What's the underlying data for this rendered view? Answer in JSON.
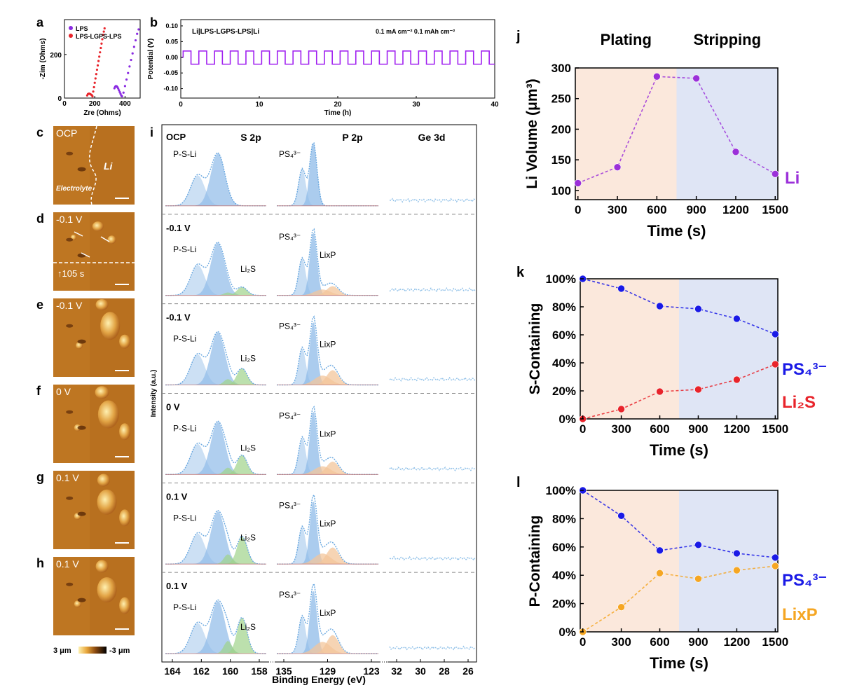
{
  "panel_letters": {
    "a": "a",
    "b": "b",
    "c": "c",
    "d": "d",
    "e": "e",
    "f": "f",
    "g": "g",
    "h": "h",
    "i": "i",
    "j": "j",
    "k": "k",
    "l": "l"
  },
  "afm": {
    "panels": [
      {
        "letter": "c",
        "label": "OCP",
        "extra": "Li",
        "extra2": "Electrolyte"
      },
      {
        "letter": "d",
        "label": "-0.1 V",
        "extra": "105 s"
      },
      {
        "letter": "e",
        "label": "-0.1 V"
      },
      {
        "letter": "f",
        "label": "0 V"
      },
      {
        "letter": "g",
        "label": "0.1 V"
      },
      {
        "letter": "h",
        "label": "0.1 V"
      }
    ],
    "colorbar_max": "3 μm",
    "colorbar_min": "-3 μm"
  },
  "xps": {
    "ylabel": "Intensity (a.u.)",
    "xlabel": "Binding Energy (eV)",
    "region_titles": [
      "S 2p",
      "P 2p",
      "Ge 3d"
    ],
    "s_ticks": [
      "164",
      "162",
      "160",
      "158"
    ],
    "p_ticks": [
      "135",
      "129",
      "123"
    ],
    "ge_ticks": [
      "32",
      "30",
      "28",
      "26"
    ],
    "rows": [
      {
        "state": "OCP",
        "s": [
          "P-S-Li"
        ],
        "p": [
          "PS₄³⁻"
        ]
      },
      {
        "state": "-0.1 V",
        "s": [
          "P-S-Li",
          "Li₂S"
        ],
        "p": [
          "PS₄³⁻",
          "LixP"
        ]
      },
      {
        "state": "-0.1 V",
        "s": [
          "P-S-Li",
          "Li₂S"
        ],
        "p": [
          "PS₄³⁻",
          "LixP"
        ]
      },
      {
        "state": "0 V",
        "s": [
          "P-S-Li",
          "Li₂S"
        ],
        "p": [
          "PS₄³⁻",
          "LixP"
        ]
      },
      {
        "state": "0.1 V",
        "s": [
          "P-S-Li",
          "Li₂S"
        ],
        "p": [
          "PS₄³⁻",
          "LixP"
        ]
      },
      {
        "state": "0.1 V",
        "s": [
          "P-S-Li",
          "Li₂S"
        ],
        "p": [
          "PS₄³⁻",
          "LixP"
        ]
      }
    ],
    "li2s_weights": [
      0,
      0.15,
      0.3,
      0.35,
      0.5,
      0.65
    ],
    "lixp_weights": [
      0,
      0.25,
      0.4,
      0.35,
      0.45,
      0.5
    ]
  },
  "chart_data": [
    {
      "id": "a",
      "type": "scatter",
      "title": "",
      "xlabel": "Zre (Ohms)",
      "ylabel": "-Zim (Ohms)",
      "xlim": [
        0,
        500
      ],
      "ylim": [
        0,
        360
      ],
      "xticks": [
        0,
        200,
        400
      ],
      "yticks": [
        0,
        200
      ],
      "series": [
        {
          "name": "LPS",
          "color": "#8a2be2",
          "x": [
            330,
            335,
            340,
            345,
            350,
            355,
            360,
            365,
            370,
            375,
            380,
            390,
            400,
            410,
            420,
            430,
            440,
            450,
            460,
            470,
            480,
            490
          ],
          "y": [
            45,
            52,
            55,
            54,
            50,
            44,
            36,
            28,
            20,
            12,
            8,
            25,
            55,
            85,
            115,
            145,
            175,
            205,
            235,
            265,
            295,
            315
          ]
        },
        {
          "name": "LPS-LGPS-LPS",
          "color": "#e8242b",
          "x": [
            150,
            155,
            160,
            165,
            170,
            175,
            180,
            185,
            190,
            195,
            200,
            205,
            210,
            215,
            220,
            225,
            230,
            235,
            240,
            245,
            250,
            255,
            260,
            265
          ],
          "y": [
            12,
            18,
            20,
            20,
            18,
            16,
            14,
            8,
            30,
            50,
            70,
            90,
            110,
            130,
            150,
            170,
            190,
            210,
            230,
            250,
            270,
            290,
            305,
            320
          ]
        }
      ]
    },
    {
      "id": "b",
      "type": "line",
      "title": "Li|LPS-LGPS-LPS|Li",
      "annotation": "0.1 mA cm⁻² 0.1 mAh cm⁻²",
      "xlabel": "Time (h)",
      "ylabel": "Potential (V)",
      "xlim": [
        0,
        40
      ],
      "ylim": [
        -0.13,
        0.12
      ],
      "xticks": [
        0,
        10,
        20,
        30,
        40
      ],
      "yticks": [
        0.1,
        0.05,
        0.0,
        -0.05,
        -0.1
      ],
      "ytick_labels": [
        "0.10",
        "0.05",
        "0.00",
        "-0.05",
        "-0.10"
      ],
      "series": [
        {
          "name": "voltage",
          "color": "#a020f0",
          "period_h": 2,
          "high": 0.02,
          "low": -0.022
        }
      ]
    },
    {
      "id": "j",
      "type": "line",
      "title": "",
      "header_left": "Plating",
      "header_right": "Stripping",
      "xlabel": "Time (s)",
      "ylabel": "Li Volume (μm³)",
      "x": [
        0,
        300,
        600,
        900,
        1200,
        1500
      ],
      "xlim": [
        -20,
        1520
      ],
      "ylim": [
        85,
        300
      ],
      "xticks": [
        0,
        300,
        600,
        900,
        1200,
        1500
      ],
      "yticks": [
        100,
        150,
        200,
        250,
        300
      ],
      "boundary": 750,
      "series": [
        {
          "name": "Li",
          "color": "#9b30d9",
          "values": [
            112,
            138,
            286,
            283,
            163,
            127
          ]
        }
      ]
    },
    {
      "id": "k",
      "type": "line",
      "title": "",
      "xlabel": "Time (s)",
      "ylabel": "S-Containing",
      "x": [
        0,
        300,
        600,
        900,
        1200,
        1500
      ],
      "xlim": [
        -20,
        1520
      ],
      "ylim": [
        0,
        100
      ],
      "xticks": [
        0,
        300,
        600,
        900,
        1200,
        1500
      ],
      "yticks": [
        0,
        20,
        40,
        60,
        80,
        100
      ],
      "ytick_labels": [
        "0%",
        "20%",
        "40%",
        "60%",
        "80%",
        "100%"
      ],
      "boundary": 750,
      "series": [
        {
          "name": "PS₄³⁻",
          "color": "#1a1ae6",
          "values": [
            100,
            93,
            80.5,
            78.5,
            71.5,
            60.5
          ]
        },
        {
          "name": "Li₂S",
          "color": "#e8242b",
          "values": [
            0,
            7,
            19.5,
            21,
            28,
            39
          ]
        }
      ]
    },
    {
      "id": "l",
      "type": "line",
      "title": "",
      "xlabel": "Time (s)",
      "ylabel": "P-Containing",
      "x": [
        0,
        300,
        600,
        900,
        1200,
        1500
      ],
      "xlim": [
        -20,
        1520
      ],
      "ylim": [
        0,
        100
      ],
      "xticks": [
        0,
        300,
        600,
        900,
        1200,
        1500
      ],
      "yticks": [
        0,
        20,
        40,
        60,
        80,
        100
      ],
      "ytick_labels": [
        "0%",
        "20%",
        "40%",
        "60%",
        "80%",
        "100%"
      ],
      "boundary": 750,
      "series": [
        {
          "name": "PS₄³⁻",
          "color": "#1a1ae6",
          "values": [
            100,
            82,
            57.5,
            61.5,
            55.5,
            52.5
          ]
        },
        {
          "name": "LixP",
          "color": "#f5a623",
          "values": [
            0,
            17.5,
            41.5,
            37.5,
            43.5,
            46.5
          ]
        }
      ]
    }
  ]
}
